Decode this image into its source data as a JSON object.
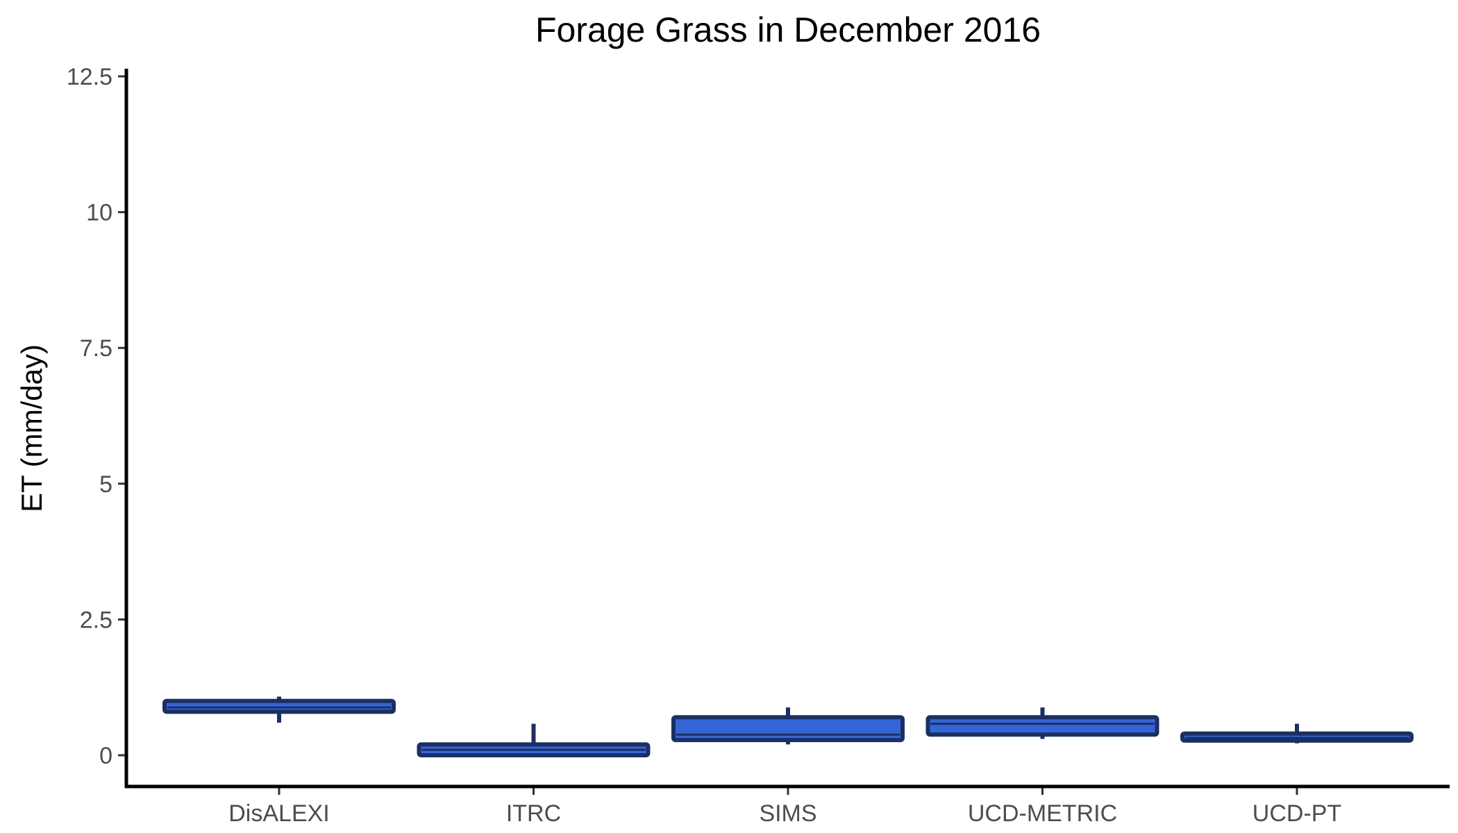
{
  "chart_data": {
    "type": "boxplot",
    "title": "Forage Grass in December 2016",
    "xlabel": "",
    "ylabel": "ET (mm/day)",
    "ylim": [
      0,
      12.5
    ],
    "yticks": [
      0,
      2.5,
      5,
      7.5,
      10,
      12.5
    ],
    "ytick_labels": [
      "0",
      "2.5",
      "5",
      "7.5",
      "10",
      "12.5"
    ],
    "grid": false,
    "legend": "none",
    "categories": [
      "DisALEXI",
      "ITRC",
      "SIMS",
      "UCD-METRIC",
      "UCD-PT"
    ],
    "boxes": [
      {
        "category": "DisALEXI",
        "whisker_low": 0.6,
        "q1": 0.8,
        "median": 0.88,
        "q3": 1.0,
        "whisker_high": 1.08
      },
      {
        "category": "ITRC",
        "whisker_low": 0.0,
        "q1": 0.0,
        "median": 0.1,
        "q3": 0.2,
        "whisker_high": 0.58
      },
      {
        "category": "SIMS",
        "whisker_low": 0.2,
        "q1": 0.28,
        "median": 0.38,
        "q3": 0.7,
        "whisker_high": 0.88
      },
      {
        "category": "UCD-METRIC",
        "whisker_low": 0.3,
        "q1": 0.38,
        "median": 0.58,
        "q3": 0.7,
        "whisker_high": 0.88
      },
      {
        "category": "UCD-PT",
        "whisker_low": 0.22,
        "q1": 0.27,
        "median": 0.32,
        "q3": 0.4,
        "whisker_high": 0.58
      }
    ],
    "colors": {
      "fill": "#3566d6",
      "stroke": "#1b2f63",
      "axis": "#000000",
      "tick_text": "#4d4d4d"
    }
  }
}
